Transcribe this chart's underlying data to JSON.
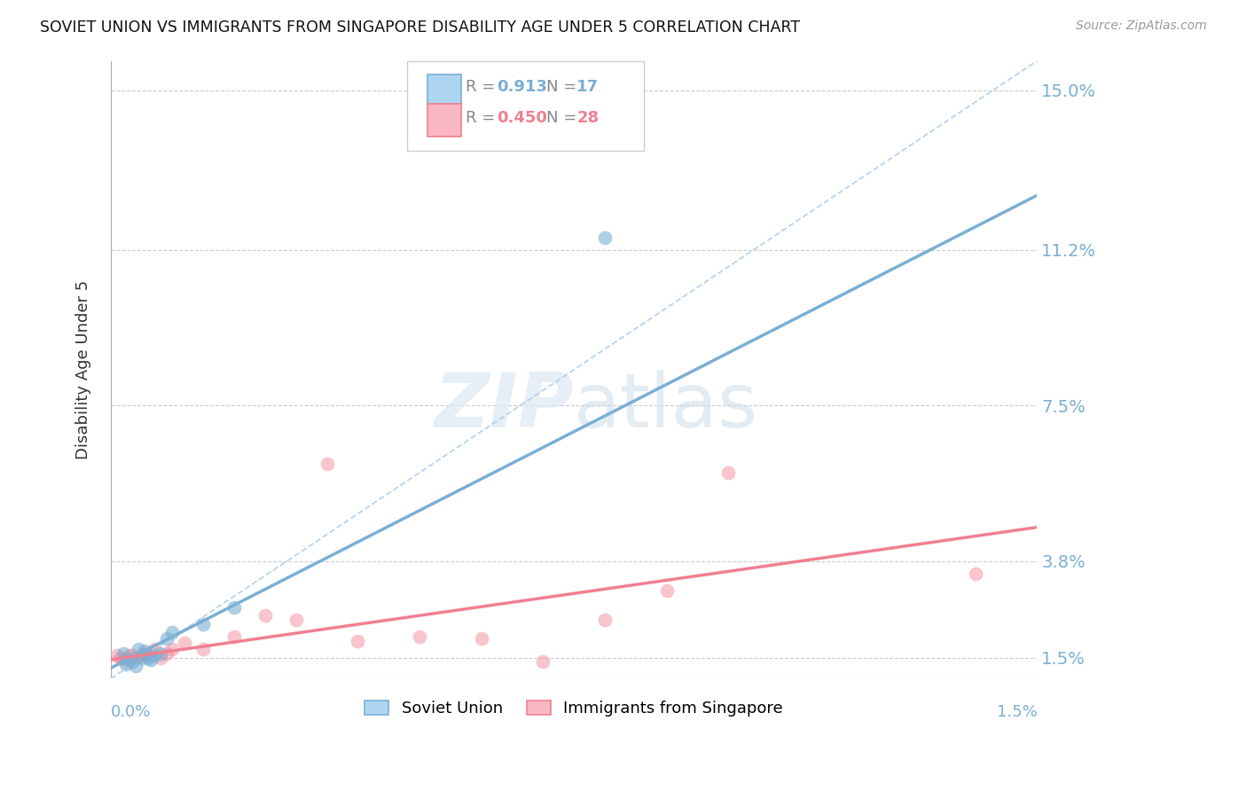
{
  "title": "SOVIET UNION VS IMMIGRANTS FROM SINGAPORE DISABILITY AGE UNDER 5 CORRELATION CHART",
  "source": "Source: ZipAtlas.com",
  "ylabel": "Disability Age Under 5",
  "legend1_label": "Soviet Union",
  "legend2_label": "Immigrants from Singapore",
  "R1": 0.913,
  "N1": 17,
  "R2": 0.45,
  "N2": 28,
  "color_blue": "#7BAFD4",
  "color_pink": "#F08090",
  "color_blue_light": "#AED6F1",
  "color_pink_light": "#FAB8C4",
  "color_dashed": "#AACCEE",
  "ytick_vals": [
    0.015,
    0.038,
    0.075,
    0.112,
    0.15
  ],
  "ytick_labels": [
    "1.5%",
    "3.8%",
    "7.5%",
    "11.2%",
    "15.0%"
  ],
  "xmin": 0.0,
  "xmax": 0.015,
  "ymin": 0.01,
  "ymax": 0.157,
  "blue_x": [
    0.0002,
    0.00025,
    0.0003,
    0.00035,
    0.0004,
    0.00045,
    0.0005,
    0.00055,
    0.0006,
    0.00065,
    0.0007,
    0.0008,
    0.0009,
    0.001,
    0.0015,
    0.002,
    0.008
  ],
  "blue_y": [
    0.016,
    0.0135,
    0.0145,
    0.014,
    0.013,
    0.017,
    0.0148,
    0.0165,
    0.015,
    0.0145,
    0.0155,
    0.016,
    0.0195,
    0.021,
    0.023,
    0.027,
    0.115
  ],
  "pink_x": [
    0.0001,
    0.00015,
    0.0002,
    0.00025,
    0.0003,
    0.00035,
    0.0004,
    0.0005,
    0.00055,
    0.0006,
    0.0007,
    0.0008,
    0.0009,
    0.001,
    0.0012,
    0.0015,
    0.002,
    0.0025,
    0.003,
    0.0035,
    0.004,
    0.005,
    0.006,
    0.007,
    0.008,
    0.009,
    0.01,
    0.014
  ],
  "pink_y": [
    0.0155,
    0.015,
    0.0145,
    0.015,
    0.0155,
    0.0155,
    0.0148,
    0.0155,
    0.016,
    0.0155,
    0.017,
    0.0148,
    0.016,
    0.017,
    0.0185,
    0.017,
    0.02,
    0.025,
    0.024,
    0.061,
    0.019,
    0.02,
    0.0195,
    0.014,
    0.024,
    0.031,
    0.059,
    0.035
  ],
  "blue_line_x": [
    0.0,
    0.015
  ],
  "blue_line_y": [
    0.0125,
    0.125
  ],
  "pink_line_x": [
    0.0,
    0.015
  ],
  "pink_line_y": [
    0.0145,
    0.046
  ]
}
